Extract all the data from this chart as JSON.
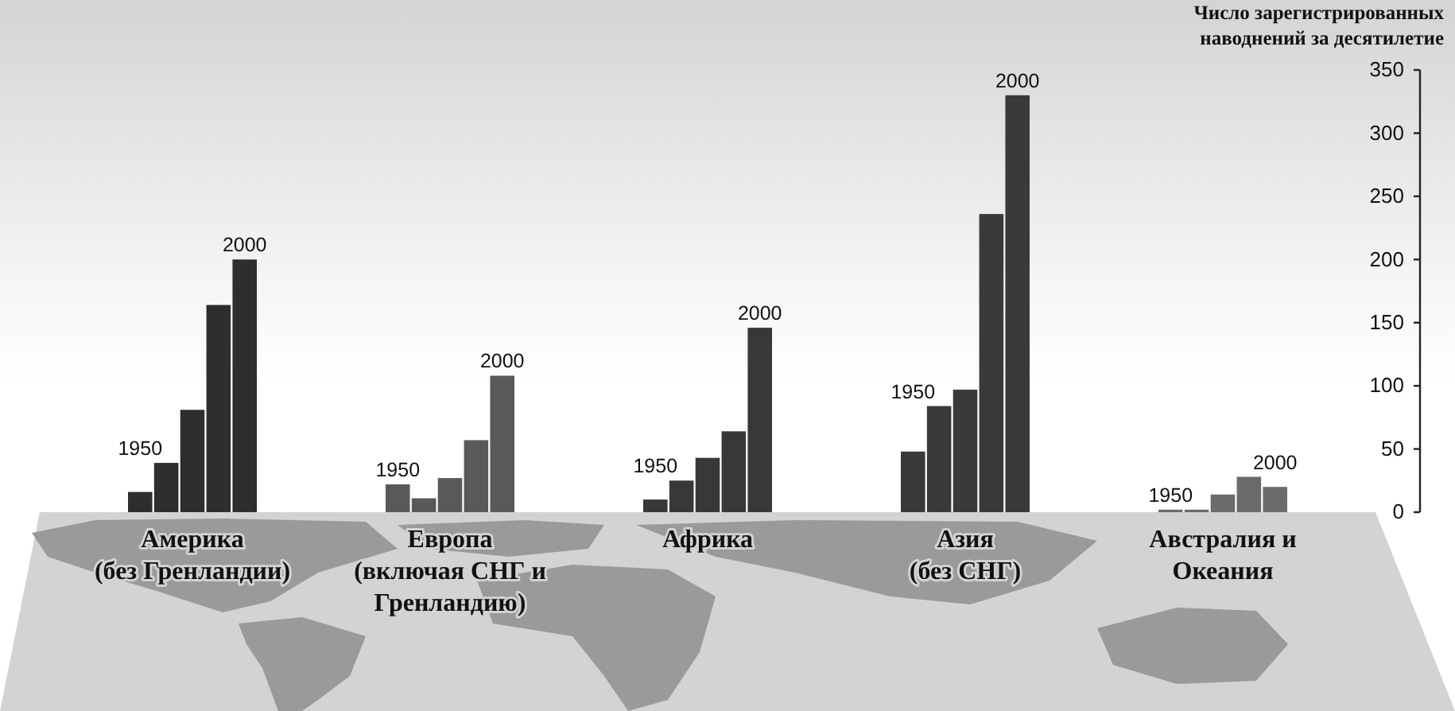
{
  "chart_data": {
    "type": "bar",
    "ylabel": "Число зарегистрированных наводнений за десятилетие",
    "categories": [
      "Америка (без Гренландии)",
      "Европа (включая СНГ и Гренландию)",
      "Африка",
      "Азия (без СНГ)",
      "Австралия и Океания"
    ],
    "ylim": [
      0,
      350
    ],
    "yticks": [
      0,
      50,
      100,
      150,
      200,
      250,
      300,
      350
    ],
    "series": [
      {
        "name": "1950",
        "colors": [
          "#2e2e2e",
          "#595959",
          "#383838",
          "#3a3a3a",
          "#6b6b6b"
        ],
        "values": [
          16,
          22,
          10,
          48,
          2
        ]
      },
      {
        "colors": [
          "#2e2e2e",
          "#595959",
          "#383838",
          "#3a3a3a",
          "#6b6b6b"
        ],
        "values": [
          39,
          11,
          25,
          84,
          2
        ]
      },
      {
        "colors": [
          "#2e2e2e",
          "#595959",
          "#383838",
          "#3a3a3a",
          "#6b6b6b"
        ],
        "values": [
          81,
          27,
          43,
          97,
          14
        ]
      },
      {
        "colors": [
          "#2e2e2e",
          "#595959",
          "#383838",
          "#3a3a3a",
          "#6b6b6b"
        ],
        "values": [
          164,
          57,
          64,
          236,
          28
        ]
      },
      {
        "name": "2000",
        "colors": [
          "#2e2e2e",
          "#595959",
          "#383838",
          "#3a3a3a",
          "#6b6b6b"
        ],
        "values": [
          200,
          108,
          146,
          330,
          20
        ]
      }
    ]
  }
}
